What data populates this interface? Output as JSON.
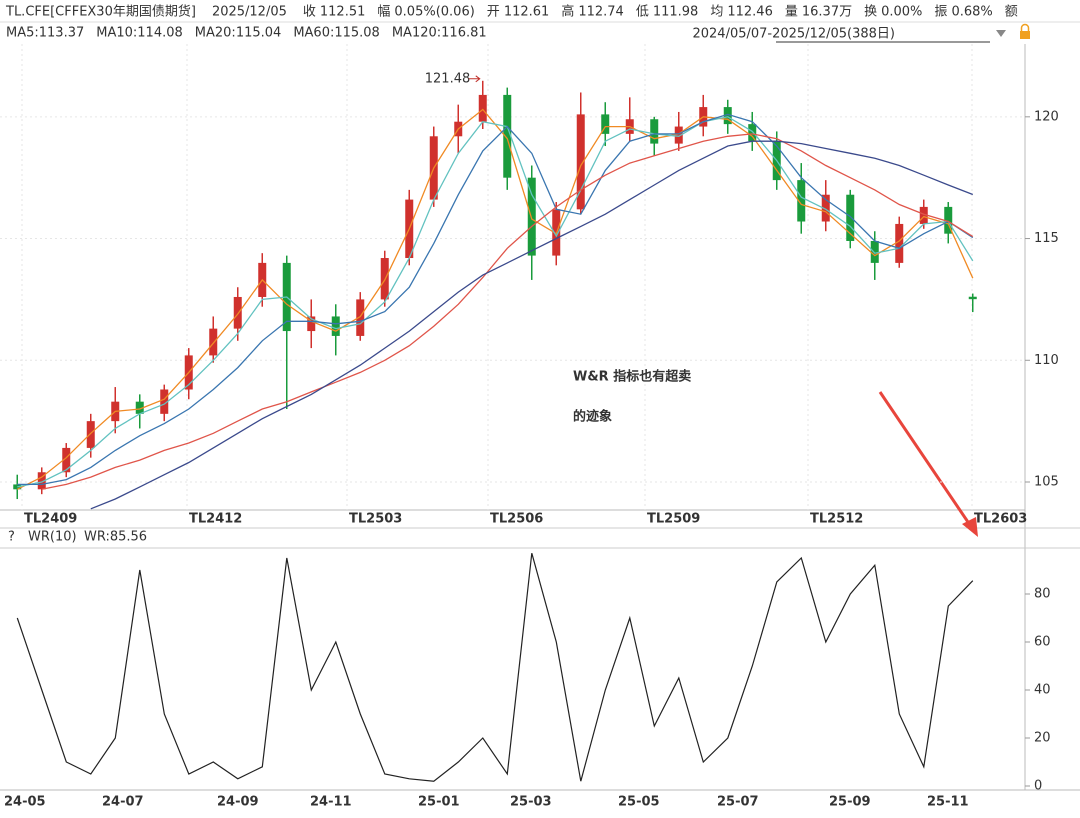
{
  "header": {
    "symbol": "TL.CFE[CFFEX30年期国债期货]",
    "date": "2025/12/05",
    "fields": [
      {
        "label": "收",
        "value": "112.51",
        "color": "#d0312d"
      },
      {
        "label": "幅",
        "value": "0.05%(0.06)",
        "color": "#d0312d"
      },
      {
        "label": "开",
        "value": "112.61",
        "color": "#d0312d"
      },
      {
        "label": "高",
        "value": "112.74",
        "color": "#d0312d"
      },
      {
        "label": "低",
        "value": "111.98",
        "color": "#1a9b3c"
      },
      {
        "label": "均",
        "value": "112.46",
        "color": "#d0312d"
      },
      {
        "label": "量",
        "value": "16.37万",
        "color": "#333333"
      },
      {
        "label": "换",
        "value": "0.00%",
        "color": "#333333"
      },
      {
        "label": "振",
        "value": "0.68%",
        "color": "#333333"
      }
    ],
    "tail": "额",
    "range": "2024/05/07-2025/12/05(388日)"
  },
  "chart_data": [
    {
      "type": "candlestick",
      "ylim": [
        103.85,
        122.95
      ],
      "yticks": [
        105,
        110,
        115,
        120
      ],
      "grid": true,
      "up_color": "#d0312d",
      "down_color": "#1a9b3c",
      "period_labels": [
        "TL2409",
        "TL2412",
        "TL2503",
        "TL2506",
        "TL2509",
        "TL2512",
        "TL2603"
      ],
      "ohlc": [
        [
          104.9,
          105.3,
          104.3,
          104.7
        ],
        [
          104.7,
          105.6,
          104.5,
          105.4
        ],
        [
          105.4,
          106.6,
          105.2,
          106.4
        ],
        [
          106.4,
          107.8,
          106.0,
          107.5
        ],
        [
          107.5,
          108.9,
          107.0,
          108.3
        ],
        [
          108.3,
          108.6,
          107.2,
          107.8
        ],
        [
          107.8,
          109.0,
          107.5,
          108.8
        ],
        [
          108.8,
          110.5,
          108.4,
          110.2
        ],
        [
          110.2,
          111.8,
          109.9,
          111.3
        ],
        [
          111.3,
          113.0,
          110.8,
          112.6
        ],
        [
          112.6,
          114.4,
          112.2,
          114.0
        ],
        [
          114.0,
          114.3,
          108.0,
          111.2
        ],
        [
          111.2,
          112.5,
          110.5,
          111.8
        ],
        [
          111.8,
          112.3,
          110.2,
          111.0
        ],
        [
          111.0,
          112.8,
          110.8,
          112.5
        ],
        [
          112.5,
          114.5,
          112.2,
          114.2
        ],
        [
          114.2,
          117.0,
          113.9,
          116.6
        ],
        [
          116.6,
          119.6,
          116.3,
          119.2
        ],
        [
          119.2,
          120.5,
          118.5,
          119.8
        ],
        [
          119.8,
          121.48,
          119.5,
          120.9
        ],
        [
          120.9,
          121.2,
          117.0,
          117.5
        ],
        [
          117.5,
          118.0,
          113.3,
          114.3
        ],
        [
          114.3,
          116.5,
          113.9,
          116.2
        ],
        [
          116.2,
          121.0,
          116.0,
          120.1
        ],
        [
          120.1,
          120.6,
          118.8,
          119.3
        ],
        [
          119.3,
          120.8,
          119.0,
          119.9
        ],
        [
          119.9,
          120.0,
          118.4,
          118.9
        ],
        [
          118.9,
          120.2,
          118.6,
          119.6
        ],
        [
          119.6,
          120.9,
          119.2,
          120.4
        ],
        [
          120.4,
          120.7,
          119.3,
          119.7
        ],
        [
          119.7,
          120.2,
          118.6,
          119.0
        ],
        [
          119.0,
          119.4,
          117.0,
          117.4
        ],
        [
          117.4,
          118.1,
          115.2,
          115.7
        ],
        [
          115.7,
          117.4,
          115.3,
          116.8
        ],
        [
          116.8,
          117.0,
          114.6,
          114.9
        ],
        [
          114.9,
          115.3,
          113.3,
          114.0
        ],
        [
          114.0,
          115.9,
          113.8,
          115.6
        ],
        [
          115.6,
          116.6,
          115.4,
          116.3
        ],
        [
          116.3,
          116.5,
          114.8,
          115.2
        ],
        [
          112.61,
          112.74,
          111.98,
          112.51
        ]
      ],
      "series": [
        {
          "name": "MA5:113.37",
          "color": "#f08a24",
          "values": [
            104.7,
            105.2,
            106.0,
            107.0,
            107.9,
            108.0,
            108.4,
            109.5,
            110.7,
            111.9,
            113.3,
            112.3,
            111.6,
            111.2,
            111.8,
            113.3,
            115.4,
            117.9,
            119.5,
            120.3,
            119.1,
            115.8,
            115.2,
            118.0,
            119.6,
            119.6,
            119.1,
            119.3,
            120.0,
            119.9,
            119.2,
            117.8,
            116.4,
            116.1,
            115.2,
            114.3,
            114.9,
            115.9,
            115.6,
            113.37
          ]
        },
        {
          "name": "MA10:114.08",
          "color": "#62c2c0",
          "values": [
            104.8,
            105.0,
            105.5,
            106.3,
            107.2,
            107.8,
            108.2,
            109.0,
            110.0,
            111.1,
            112.5,
            112.6,
            111.7,
            111.3,
            111.5,
            112.4,
            114.2,
            116.6,
            118.5,
            119.8,
            119.6,
            116.8,
            115.1,
            117.0,
            119.0,
            119.5,
            119.3,
            119.2,
            119.8,
            120.0,
            119.4,
            118.2,
            116.7,
            116.2,
            115.5,
            114.4,
            114.6,
            115.6,
            115.7,
            114.08
          ]
        },
        {
          "name": "MA20:115.04",
          "color": "#3a76b0",
          "values": [
            104.9,
            104.9,
            105.1,
            105.6,
            106.3,
            106.9,
            107.4,
            108.0,
            108.8,
            109.7,
            110.8,
            111.6,
            111.6,
            111.5,
            111.6,
            112.0,
            113.0,
            114.8,
            116.8,
            118.6,
            119.6,
            118.5,
            116.2,
            116.0,
            117.8,
            119.0,
            119.3,
            119.3,
            119.8,
            120.1,
            119.8,
            118.8,
            117.5,
            116.6,
            115.9,
            114.9,
            114.6,
            115.2,
            115.7,
            115.04
          ]
        },
        {
          "name": "MA60:115.08",
          "color": "#e0554a",
          "values": [
            null,
            104.7,
            104.9,
            105.2,
            105.6,
            105.9,
            106.3,
            106.6,
            107.0,
            107.5,
            108.0,
            108.3,
            108.7,
            109.1,
            109.5,
            110.0,
            110.6,
            111.4,
            112.3,
            113.4,
            114.6,
            115.5,
            116.3,
            117.0,
            117.6,
            118.1,
            118.4,
            118.7,
            119.0,
            119.2,
            119.3,
            119.1,
            118.6,
            118.0,
            117.5,
            117.0,
            116.4,
            116.0,
            115.7,
            115.08
          ]
        },
        {
          "name": "MA120:116.81",
          "color": "#3b4a8c",
          "values": [
            null,
            null,
            null,
            103.9,
            104.3,
            104.8,
            105.3,
            105.8,
            106.4,
            107.0,
            107.6,
            108.1,
            108.6,
            109.2,
            109.8,
            110.5,
            111.2,
            112.0,
            112.8,
            113.5,
            114.0,
            114.5,
            115.0,
            115.5,
            116.0,
            116.6,
            117.2,
            117.8,
            118.3,
            118.8,
            119.0,
            119.0,
            118.9,
            118.7,
            118.5,
            118.3,
            118.0,
            117.6,
            117.2,
            116.81
          ]
        }
      ],
      "annotations": [
        "121.48"
      ],
      "callout": [
        "W&R 指标也有超卖",
        "的迹象"
      ]
    },
    {
      "type": "line",
      "title": "WR(10)",
      "label": "WR:85.56",
      "help": "?",
      "ylim": [
        0,
        100
      ],
      "yticks": [
        0,
        20,
        40,
        60,
        80
      ],
      "color": "#222222",
      "period_labels": [
        "24-05",
        "24-07",
        "24-09",
        "24-11",
        "25-01",
        "25-03",
        "25-05",
        "25-07",
        "25-09",
        "25-11"
      ],
      "values": [
        70,
        40,
        10,
        5,
        20,
        90,
        30,
        5,
        10,
        3,
        8,
        95,
        40,
        60,
        30,
        5,
        3,
        2,
        10,
        20,
        5,
        97,
        60,
        2,
        40,
        70,
        25,
        45,
        10,
        20,
        50,
        85,
        95,
        60,
        80,
        92,
        30,
        8,
        75,
        85.56
      ]
    }
  ]
}
